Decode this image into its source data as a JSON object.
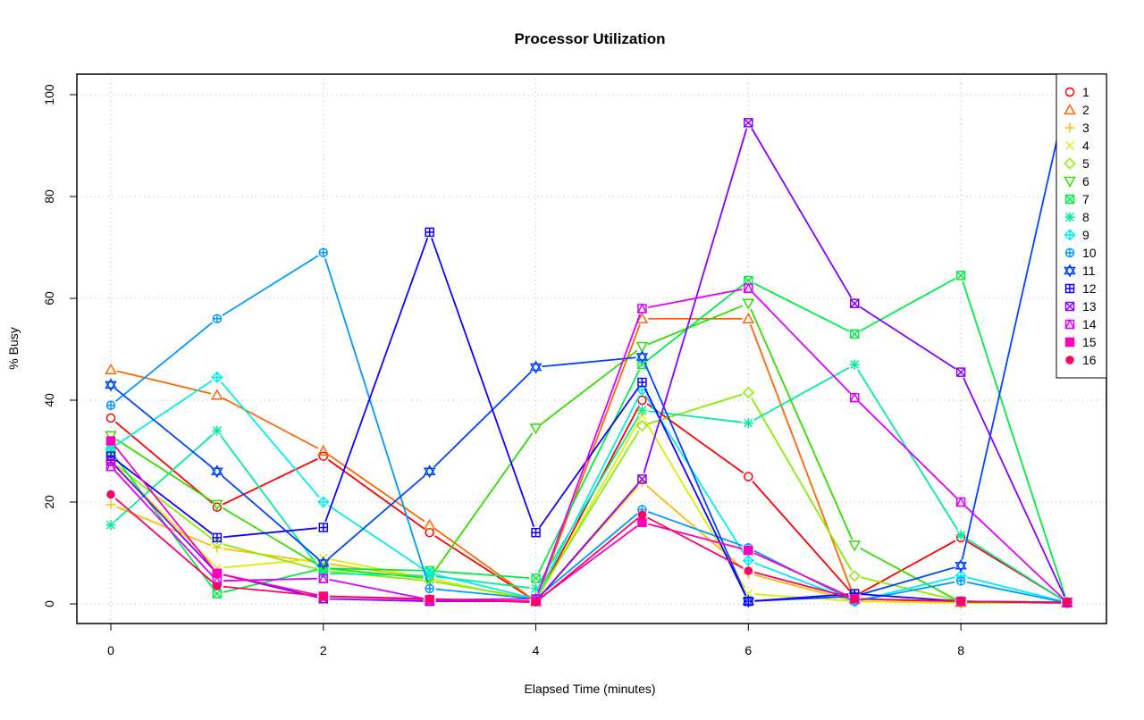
{
  "chart_data": {
    "type": "line",
    "title": "Processor Utilization",
    "xlabel": "Elapsed Time (minutes)",
    "ylabel": "% Busy",
    "xlim": [
      0,
      9
    ],
    "ylim": [
      0,
      100
    ],
    "x_ticks": [
      "0",
      "2",
      "4",
      "6",
      "8"
    ],
    "y_ticks": [
      "0",
      "20",
      "40",
      "60",
      "80",
      "100"
    ],
    "grid": true,
    "legend_position": "top-right",
    "x": [
      0,
      1,
      2,
      3,
      4,
      5,
      6,
      7,
      8,
      9
    ],
    "series": [
      {
        "name": "1",
        "color": "#ff0000",
        "marker": "circle-open",
        "values": [
          36.5,
          19,
          29,
          14,
          0.5,
          40,
          25,
          1.5,
          13,
          0.3
        ]
      },
      {
        "name": "2",
        "color": "#ff6600",
        "marker": "triangle-open",
        "values": [
          46,
          41,
          30,
          15.5,
          0.5,
          56,
          56,
          1,
          0.3,
          0.3
        ]
      },
      {
        "name": "3",
        "color": "#ffbb00",
        "marker": "plus",
        "values": [
          19.5,
          11,
          8,
          5,
          0.5,
          24,
          6,
          0.5,
          0.2,
          0.2
        ]
      },
      {
        "name": "4",
        "color": "#ddee00",
        "marker": "cross",
        "values": [
          28,
          7,
          9,
          5,
          0.5,
          37,
          2,
          0.5,
          0.2,
          0.2
        ]
      },
      {
        "name": "5",
        "color": "#88ee00",
        "marker": "diamond-open",
        "values": [
          28,
          12,
          6.5,
          4.5,
          1,
          35,
          41.5,
          5.5,
          0.5,
          0.2
        ]
      },
      {
        "name": "6",
        "color": "#33dd00",
        "marker": "triangle-down-open",
        "values": [
          33,
          19.5,
          7,
          5,
          34.5,
          50.5,
          59,
          11.5,
          0.3,
          0.3
        ]
      },
      {
        "name": "7",
        "color": "#00ee44",
        "marker": "square-cross",
        "values": [
          30,
          2,
          7,
          6.5,
          5,
          47,
          63.5,
          53,
          64.5,
          0.3
        ]
      },
      {
        "name": "8",
        "color": "#00ee99",
        "marker": "asterisk",
        "values": [
          15.5,
          34,
          6,
          5.5,
          3,
          38,
          35.5,
          47,
          13.5,
          0.3
        ]
      },
      {
        "name": "9",
        "color": "#00eeee",
        "marker": "diamond-plus",
        "values": [
          30.5,
          44.5,
          20,
          6,
          1,
          42,
          8.5,
          0.5,
          5.5,
          0.3
        ]
      },
      {
        "name": "10",
        "color": "#0099ff",
        "marker": "circle-plus",
        "values": [
          39,
          56,
          69,
          3,
          1,
          18.5,
          11,
          0.5,
          4.5,
          0.2
        ]
      },
      {
        "name": "11",
        "color": "#0044ff",
        "marker": "star-of-david",
        "values": [
          43,
          26,
          8,
          26,
          46.5,
          48.5,
          0.5,
          1.5,
          7.5,
          100
        ]
      },
      {
        "name": "12",
        "color": "#1100ff",
        "marker": "square-plus",
        "values": [
          29,
          13,
          15,
          73,
          14,
          43.5,
          0.5,
          2,
          0.5,
          0.2
        ]
      },
      {
        "name": "13",
        "color": "#8800ff",
        "marker": "square-x",
        "values": [
          28,
          6,
          1,
          0.5,
          0.5,
          24.5,
          94.5,
          59,
          45.5,
          0.3
        ]
      },
      {
        "name": "14",
        "color": "#dd00ff",
        "marker": "square-triangle",
        "values": [
          27,
          4.5,
          5,
          0.8,
          1,
          58,
          62,
          40.5,
          20,
          0.3
        ]
      },
      {
        "name": "15",
        "color": "#ff00bb",
        "marker": "square-filled",
        "values": [
          32,
          6,
          1.5,
          0.8,
          0.5,
          16,
          10.5,
          1,
          0.5,
          0.3
        ]
      },
      {
        "name": "16",
        "color": "#ff0066",
        "marker": "circle-filled",
        "values": [
          21.5,
          3.5,
          1.5,
          1,
          0.3,
          17.5,
          6.5,
          1,
          0.5,
          0.3
        ]
      }
    ]
  }
}
